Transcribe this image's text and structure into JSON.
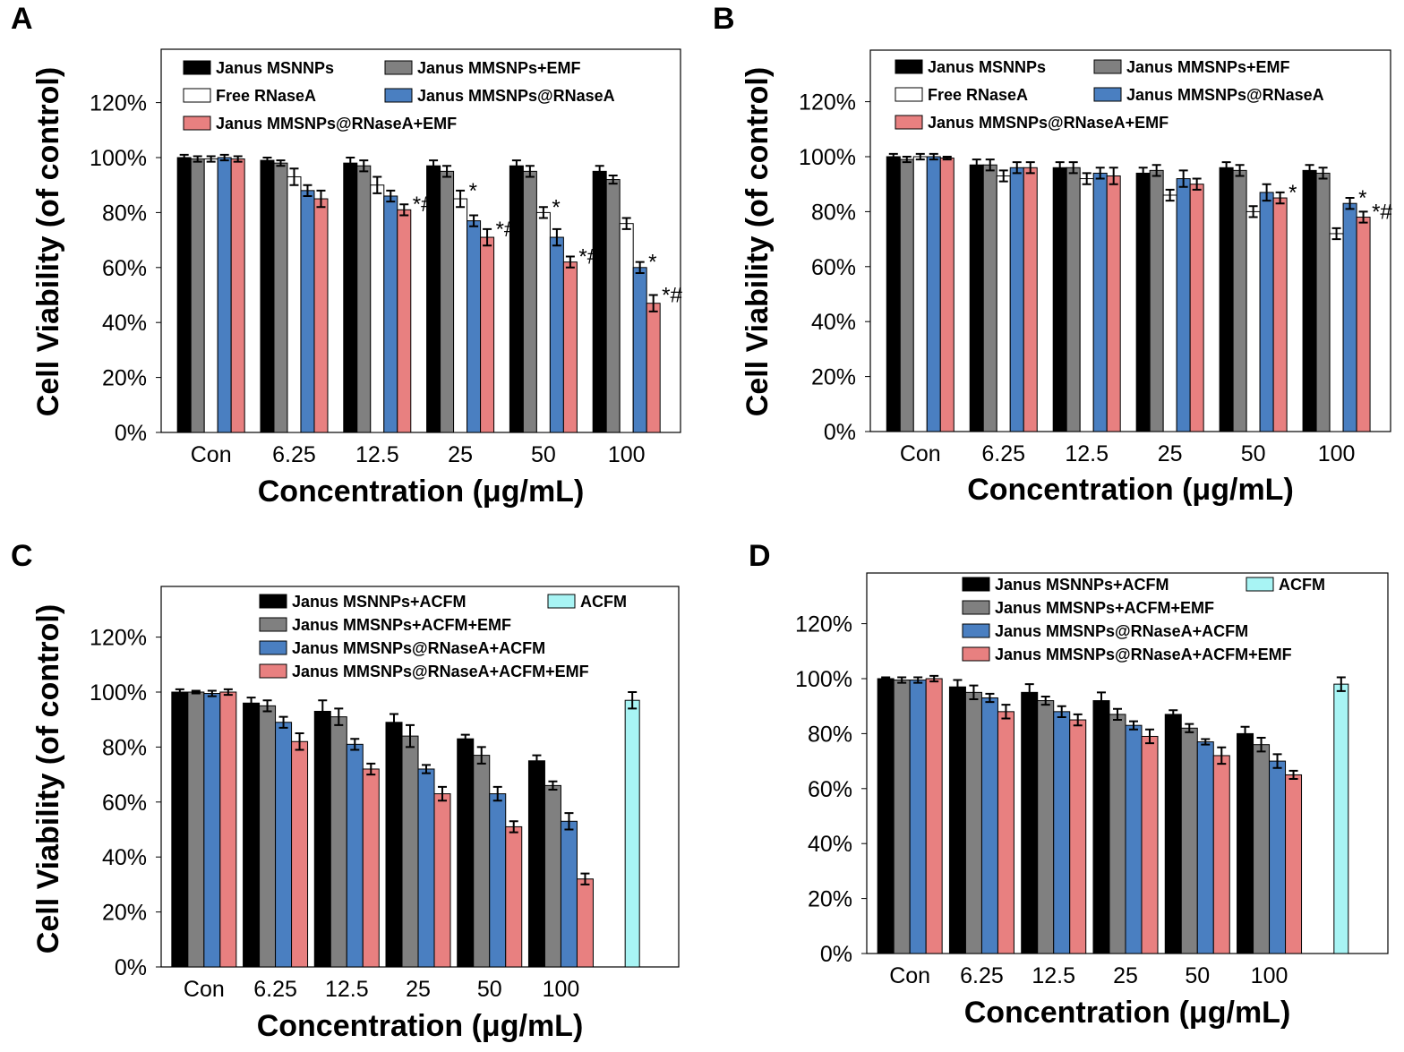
{
  "colors": {
    "black": "#000000",
    "gray": "#808080",
    "white": "#ffffff",
    "blue": "#4a7fc1",
    "pink": "#e88080",
    "cyan": "#a8f4f4"
  },
  "chart_data": [
    {
      "panel": "A",
      "type": "bar",
      "xlabel": "Concentration (μg/mL)",
      "ylabel": "Cell Viability (of control)",
      "ylim": [
        0,
        120
      ],
      "yticks": [
        "0%",
        "20%",
        "40%",
        "60%",
        "80%",
        "100%",
        "120%"
      ],
      "categories": [
        "Con",
        "6.25",
        "12.5",
        "25",
        "50",
        "100"
      ],
      "series": [
        {
          "name": "Janus MSNNPs",
          "color": "black",
          "values": [
            100,
            99,
            98,
            97,
            97,
            95
          ],
          "err": [
            1,
            1,
            2,
            2,
            2,
            2
          ]
        },
        {
          "name": "Janus MMSNPs+EMF",
          "color": "gray",
          "values": [
            99.5,
            98,
            97,
            95,
            95,
            92
          ],
          "err": [
            1,
            1,
            2,
            2,
            2,
            1.5
          ]
        },
        {
          "name": "Free RNaseA",
          "color": "white",
          "values": [
            99.5,
            93,
            90,
            85,
            80,
            76
          ],
          "err": [
            1,
            3,
            3,
            3,
            2,
            2
          ]
        },
        {
          "name": "Janus MMSNPs@RNaseA",
          "color": "blue",
          "values": [
            100,
            88,
            86,
            77,
            71,
            60
          ],
          "err": [
            1,
            2,
            2,
            2,
            3,
            2
          ]
        },
        {
          "name": "Janus MMSNPs@RNaseA+EMF",
          "color": "pink",
          "values": [
            99.5,
            85,
            81,
            71,
            62,
            47
          ],
          "err": [
            1,
            3,
            2,
            3,
            2,
            3
          ]
        }
      ],
      "annotations": [
        {
          "cat": 2,
          "series": 4,
          "text": "*#"
        },
        {
          "cat": 3,
          "series": 2,
          "text": "*"
        },
        {
          "cat": 3,
          "series": 4,
          "text": "*#"
        },
        {
          "cat": 4,
          "series": 2,
          "text": "*"
        },
        {
          "cat": 4,
          "series": 4,
          "text": "*#"
        },
        {
          "cat": 5,
          "series": 3,
          "text": "*"
        },
        {
          "cat": 5,
          "series": 4,
          "text": "*#"
        }
      ]
    },
    {
      "panel": "B",
      "type": "bar",
      "xlabel": "Concentration (μg/mL)",
      "ylabel": "Cell Viability (of control)",
      "ylim": [
        0,
        120
      ],
      "yticks": [
        "0%",
        "20%",
        "40%",
        "60%",
        "80%",
        "100%",
        "120%"
      ],
      "categories": [
        "Con",
        "6.25",
        "12.5",
        "25",
        "50",
        "100"
      ],
      "series": [
        {
          "name": "Janus MSNNPs",
          "color": "black",
          "values": [
            100,
            97,
            96,
            94,
            96,
            95
          ],
          "err": [
            1,
            2,
            2,
            2,
            2,
            2
          ]
        },
        {
          "name": "Janus MMSNPs+EMF",
          "color": "gray",
          "values": [
            99,
            97,
            96,
            95,
            95,
            94
          ],
          "err": [
            1,
            2,
            2,
            2,
            2,
            2
          ]
        },
        {
          "name": "Free RNaseA",
          "color": "white",
          "values": [
            100,
            93,
            92,
            86,
            80,
            72
          ],
          "err": [
            1,
            2,
            2,
            2,
            2,
            2
          ]
        },
        {
          "name": "Janus MMSNPs@RNaseA",
          "color": "blue",
          "values": [
            100,
            96,
            94,
            92,
            87,
            83
          ],
          "err": [
            1,
            2,
            2,
            3,
            3,
            2
          ]
        },
        {
          "name": "Janus MMSNPs@RNaseA+EMF",
          "color": "pink",
          "values": [
            99.5,
            96,
            93,
            90,
            85,
            78
          ],
          "err": [
            0.5,
            2,
            3,
            2,
            2,
            2
          ]
        }
      ],
      "annotations": [
        {
          "cat": 4,
          "series": 4,
          "text": "*"
        },
        {
          "cat": 5,
          "series": 3,
          "text": "*"
        },
        {
          "cat": 5,
          "series": 4,
          "text": "*#"
        }
      ]
    },
    {
      "panel": "C",
      "type": "bar",
      "xlabel": "Concentration (μg/mL)",
      "ylabel": "Cell Viability (of control)",
      "ylim": [
        0,
        120
      ],
      "yticks": [
        "0%",
        "20%",
        "40%",
        "60%",
        "80%",
        "100%",
        "120%"
      ],
      "categories": [
        "Con",
        "6.25",
        "12.5",
        "25",
        "50",
        "100"
      ],
      "series": [
        {
          "name": "Janus MSNNPs+ACFM",
          "color": "black",
          "values": [
            100,
            96,
            93,
            89,
            83,
            75
          ],
          "err": [
            1,
            2,
            4,
            3,
            1.5,
            2
          ]
        },
        {
          "name": "Janus MMSNPs+ACFM+EMF",
          "color": "gray",
          "values": [
            100,
            95,
            91,
            84,
            77,
            66
          ],
          "err": [
            0.5,
            2,
            3,
            4,
            3,
            1.5
          ]
        },
        {
          "name": "Janus MMSNPs@RNaseA+ACFM",
          "color": "blue",
          "values": [
            99.5,
            89,
            81,
            72,
            63,
            53
          ],
          "err": [
            1,
            2,
            2,
            1.5,
            2.5,
            3
          ]
        },
        {
          "name": "Janus MMSNPs@RNaseA+ACFM+EMF",
          "color": "pink",
          "values": [
            100,
            82,
            72,
            63,
            51,
            32
          ],
          "err": [
            1,
            3,
            2,
            2.5,
            2,
            2
          ]
        }
      ],
      "extra": {
        "name": "ACFM",
        "color": "cyan",
        "value": 97,
        "err": 3
      },
      "annotations": []
    },
    {
      "panel": "D",
      "type": "bar",
      "xlabel": "Concentration (μg/mL)",
      "ylabel": "",
      "ylim": [
        0,
        120
      ],
      "yticks": [
        "0%",
        "20%",
        "40%",
        "60%",
        "80%",
        "100%",
        "120%"
      ],
      "categories": [
        "Con",
        "6.25",
        "12.5",
        "25",
        "50",
        "100"
      ],
      "series": [
        {
          "name": "Janus MSNNPs+ACFM",
          "color": "black",
          "values": [
            100,
            97,
            95,
            92,
            87,
            80
          ],
          "err": [
            0.5,
            2.5,
            3,
            3,
            1.5,
            2.5
          ]
        },
        {
          "name": "Janus MMSNPs+ACFM+EMF",
          "color": "gray",
          "values": [
            99.5,
            95,
            92,
            87,
            82,
            76
          ],
          "err": [
            1,
            2.5,
            1.5,
            2,
            1.5,
            2.5
          ]
        },
        {
          "name": "Janus MMSNPs@RNaseA+ACFM",
          "color": "blue",
          "values": [
            99.5,
            93,
            88,
            83,
            77,
            70
          ],
          "err": [
            1,
            1.5,
            2,
            1.5,
            1,
            2.5
          ]
        },
        {
          "name": "Janus MMSNPs@RNaseA+ACFM+EMF",
          "color": "pink",
          "values": [
            100,
            88,
            85,
            79,
            72,
            65
          ],
          "err": [
            1,
            2.5,
            2,
            2.5,
            3,
            1.5
          ]
        }
      ],
      "extra": {
        "name": "ACFM",
        "color": "cyan",
        "value": 98,
        "err": 2.5
      },
      "annotations": []
    }
  ]
}
